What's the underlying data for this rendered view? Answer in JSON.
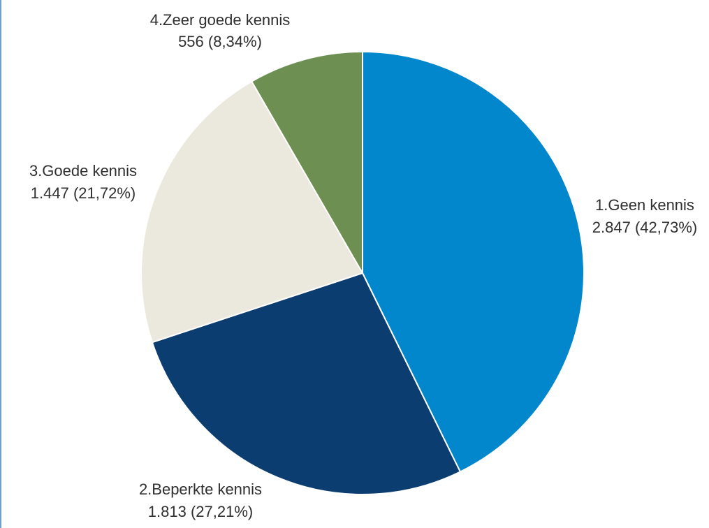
{
  "chart_data": {
    "type": "pie",
    "title": "",
    "slices": [
      {
        "label": "1.Geen kennis",
        "value": 2847,
        "value_label": "2.847 (42,73%)",
        "percent": 42.73,
        "color": "#0287cc"
      },
      {
        "label": "2.Beperkte kennis",
        "value": 1813,
        "value_label": "1.813 (27,21%)",
        "percent": 27.21,
        "color": "#0c3d70"
      },
      {
        "label": "3.Goede kennis",
        "value": 1447,
        "value_label": "1.447 (21,72%)",
        "percent": 21.72,
        "color": "#ebe9de"
      },
      {
        "label": "4.Zeer goede kennis",
        "value": 556,
        "value_label": "556 (8,34%)",
        "percent": 8.34,
        "color": "#6d8f52"
      }
    ],
    "start": "12 o'clock",
    "direction": "clockwise",
    "legend": "none"
  }
}
